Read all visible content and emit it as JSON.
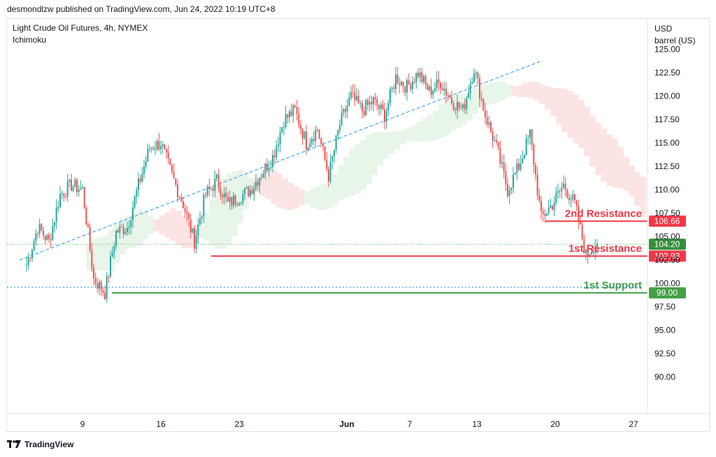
{
  "header": {
    "publisher_line": "desmondlzw published on TradingView.com, Jun 24, 2022 10:19 UTC+8"
  },
  "footer": {
    "brand": "TradingView"
  },
  "chart_data": {
    "type": "candlestick",
    "title": "Light Crude Oil Futures, 4h, NYMEX",
    "indicator": "Ichimoku",
    "currency": "USD",
    "unit": "barrel (US)",
    "ylim": [
      88.0,
      125.3
    ],
    "y_ticks": [
      125.0,
      122.5,
      120.0,
      117.5,
      115.0,
      112.5,
      110.0,
      107.5,
      105.0,
      102.5,
      100.0,
      97.5,
      95.0,
      92.5,
      90.0
    ],
    "x_ticks": [
      "9",
      "16",
      "23",
      "Jun",
      "7",
      "13",
      "20",
      "27"
    ],
    "price_path": [
      [
        "May 4",
        102.0
      ],
      [
        "May 5",
        106.0
      ],
      [
        "May 6",
        104.5
      ],
      [
        "May 7",
        109.5
      ],
      [
        "May 8",
        110.5
      ],
      [
        "May 9",
        110.0
      ],
      [
        "May 10",
        100.5
      ],
      [
        "May 11",
        99.0
      ],
      [
        "May 12",
        105.5
      ],
      [
        "May 13",
        106.0
      ],
      [
        "May 14",
        110.5
      ],
      [
        "May 15",
        114.5
      ],
      [
        "May 16",
        115.0
      ],
      [
        "May 17",
        111.5
      ],
      [
        "May 18",
        108.5
      ],
      [
        "May 19",
        104.5
      ],
      [
        "May 20",
        109.5
      ],
      [
        "May 21",
        111.0
      ],
      [
        "May 22",
        108.5
      ],
      [
        "May 24",
        110.0
      ],
      [
        "May 26",
        113.5
      ],
      [
        "May 27",
        117.5
      ],
      [
        "May 28",
        118.5
      ],
      [
        "May 29",
        115.0
      ],
      [
        "May 30",
        116.5
      ],
      [
        "May 31",
        111.5
      ],
      [
        "Jun 1",
        117.0
      ],
      [
        "Jun 2",
        120.0
      ],
      [
        "Jun 3",
        118.5
      ],
      [
        "Jun 4",
        119.5
      ],
      [
        "Jun 5",
        118.0
      ],
      [
        "Jun 6",
        122.0
      ],
      [
        "Jun 7",
        121.0
      ],
      [
        "Jun 8",
        122.5
      ],
      [
        "Jun 9",
        120.5
      ],
      [
        "Jun 10",
        121.5
      ],
      [
        "Jun 11",
        119.5
      ],
      [
        "Jun 12",
        118.5
      ],
      [
        "Jun 13",
        123.0
      ],
      [
        "Jun 14",
        118.0
      ],
      [
        "Jun 15",
        114.5
      ],
      [
        "Jun 16",
        110.0
      ],
      [
        "Jun 17",
        112.5
      ],
      [
        "Jun 18",
        116.0
      ],
      [
        "Jun 19",
        107.0
      ],
      [
        "Jun 20",
        108.5
      ],
      [
        "Jun 21",
        110.5
      ],
      [
        "Jun 22",
        108.5
      ],
      [
        "Jun 23",
        103.0
      ],
      [
        "Jun 24",
        104.5
      ]
    ],
    "levels": [
      {
        "label": "2nd Resistance",
        "value": 106.66,
        "value_label": "106.66",
        "color": "#f23645"
      },
      {
        "label": "1st Resistance",
        "value": 102.93,
        "value_label": "102.93",
        "color": "#f23645"
      },
      {
        "label": "1st Support",
        "value": 99.0,
        "value_label": "99.00",
        "color": "#43a047"
      }
    ],
    "last_price": {
      "value": 104.2,
      "label": "104.20",
      "color": "#388e3c"
    },
    "colors": {
      "up": "#26a69a",
      "down": "#ef5350",
      "trend": "#2196f3",
      "cloud_bull": "#e8f5e9",
      "cloud_bear": "#fde4e4"
    }
  }
}
